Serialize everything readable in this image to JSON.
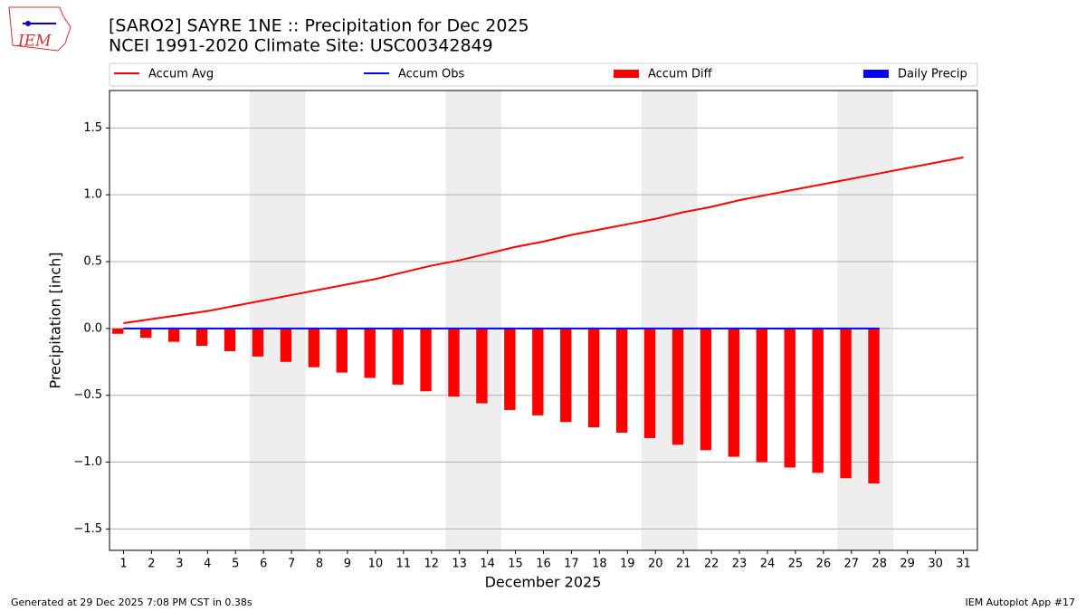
{
  "chart_data": {
    "type": "bar_line",
    "title": "[SARO2] SAYRE 1NE :: Precipitation for Dec 2025",
    "subtitle": "NCEI 1991-2020 Climate Site: USC00342849",
    "logo_text": "IEM",
    "xlabel": "December 2025",
    "ylabel": "Precipitation [inch]",
    "footer_left": "Generated at 29 Dec 2025 7:08 PM CST in 0.38s",
    "footer_right": "IEM Autoplot App #17",
    "x": [
      1,
      2,
      3,
      4,
      5,
      6,
      7,
      8,
      9,
      10,
      11,
      12,
      13,
      14,
      15,
      16,
      17,
      18,
      19,
      20,
      21,
      22,
      23,
      24,
      25,
      26,
      27,
      28,
      29,
      30,
      31
    ],
    "xlim": [
      0.5,
      31.5
    ],
    "xticks": [
      1,
      2,
      3,
      4,
      5,
      6,
      7,
      8,
      9,
      10,
      11,
      12,
      13,
      14,
      15,
      16,
      17,
      18,
      19,
      20,
      21,
      22,
      23,
      24,
      25,
      26,
      27,
      28,
      29,
      30,
      31
    ],
    "ylim": [
      -1.66,
      1.78
    ],
    "yticks": [
      {
        "value": -1.5,
        "label": "−1.5"
      },
      {
        "value": -1.0,
        "label": "−1.0"
      },
      {
        "value": -0.5,
        "label": "−0.5"
      },
      {
        "value": 0,
        "label": "0.0"
      },
      {
        "value": 0.5,
        "label": "0.5"
      },
      {
        "value": 1.0,
        "label": "1.0"
      },
      {
        "value": 1.5,
        "label": "1.5"
      }
    ],
    "grid": true,
    "highlight_spans": [
      [
        5.5,
        7.5
      ],
      [
        12.5,
        14.5
      ],
      [
        19.5,
        21.5
      ],
      [
        26.5,
        28.5
      ]
    ],
    "series": [
      {
        "name": "Accum Avg",
        "kind": "line",
        "color": "#ff0000",
        "values": [
          0.04,
          0.07,
          0.1,
          0.13,
          0.17,
          0.21,
          0.25,
          0.29,
          0.33,
          0.37,
          0.42,
          0.47,
          0.51,
          0.56,
          0.61,
          0.65,
          0.7,
          0.74,
          0.78,
          0.82,
          0.87,
          0.91,
          0.96,
          1.0,
          1.04,
          1.08,
          1.12,
          1.16,
          1.2,
          1.24,
          1.28
        ]
      },
      {
        "name": "Accum Obs",
        "kind": "line",
        "color": "#0000ff",
        "values": [
          0,
          0,
          0,
          0,
          0,
          0,
          0,
          0,
          0,
          0,
          0,
          0,
          0,
          0,
          0,
          0,
          0,
          0,
          0,
          0,
          0,
          0,
          0,
          0,
          0,
          0,
          0,
          0,
          null,
          null,
          null
        ]
      },
      {
        "name": "Accum Diff",
        "kind": "bar",
        "color": "#ff0000",
        "values": [
          -0.04,
          -0.07,
          -0.1,
          -0.13,
          -0.17,
          -0.21,
          -0.25,
          -0.29,
          -0.33,
          -0.37,
          -0.42,
          -0.47,
          -0.51,
          -0.56,
          -0.61,
          -0.65,
          -0.7,
          -0.74,
          -0.78,
          -0.82,
          -0.87,
          -0.91,
          -0.96,
          -1.0,
          -1.04,
          -1.08,
          -1.12,
          -1.16,
          null,
          null,
          null
        ]
      },
      {
        "name": "Daily Precip",
        "kind": "bar",
        "color": "#0000ff",
        "values": [
          0,
          0,
          0,
          0,
          0,
          0,
          0,
          0,
          0,
          0,
          0,
          0,
          0,
          0,
          0,
          0,
          0,
          0,
          0,
          0,
          0,
          0,
          0,
          0,
          0,
          0,
          0,
          0,
          null,
          null,
          null
        ]
      }
    ]
  }
}
